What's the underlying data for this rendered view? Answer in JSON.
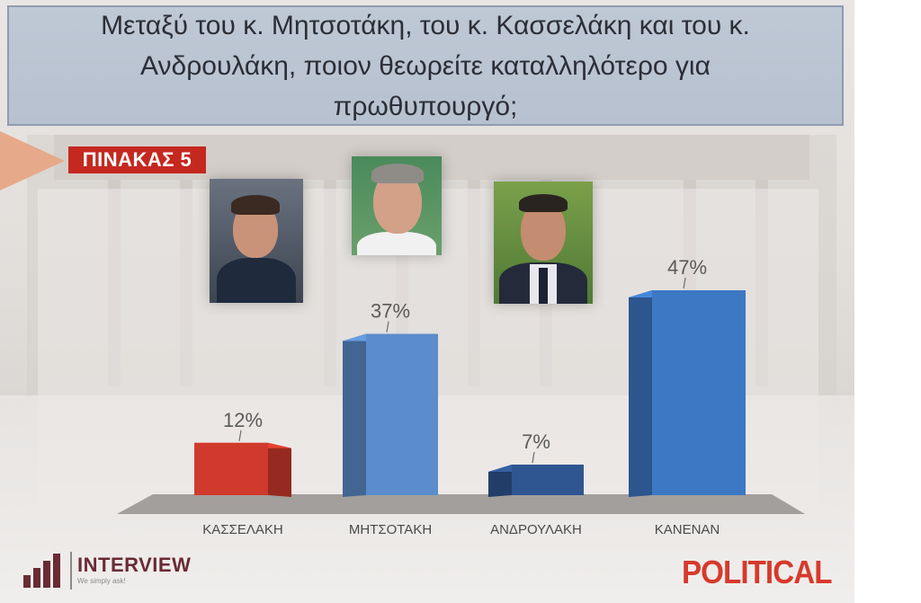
{
  "question": "Μεταξύ του κ. Μητσοτάκη, του κ. Κασσελάκη και του κ. Ανδρουλάκη, ποιον θεωρείτε καταλληλότερο για πρωθυπουργό;",
  "table_label": "ΠΙΝΑΚΑΣ 5",
  "logos": {
    "interview_name": "INTERVIEW",
    "interview_tagline": "We simply ask!",
    "political": "POLITICAL"
  },
  "colors": {
    "red_bar": "#d03a2c",
    "light_blue_bar": "#5b8ccb",
    "dark_blue_bar": "#2f5690",
    "blue_bar": "#3d78c4",
    "label_red": "#c5281f"
  },
  "chart_data": {
    "type": "bar",
    "categories": [
      "ΚΑΣΣΕΛΑΚΗ",
      "ΜΗΤΣΟΤΑΚΗ",
      "ΑΝΔΡΟΥΛΑΚΗ",
      "ΚΑΝΕΝΑΝ"
    ],
    "values": [
      12,
      37,
      7,
      47
    ],
    "value_labels": [
      "12%",
      "37%",
      "7%",
      "47%"
    ],
    "unit": "%",
    "bar_colors": [
      "#d03a2c",
      "#5b8ccb",
      "#2f5690",
      "#3d78c4"
    ],
    "ylim": [
      0,
      50
    ],
    "grid": false,
    "legend": "none",
    "style": "3d"
  }
}
